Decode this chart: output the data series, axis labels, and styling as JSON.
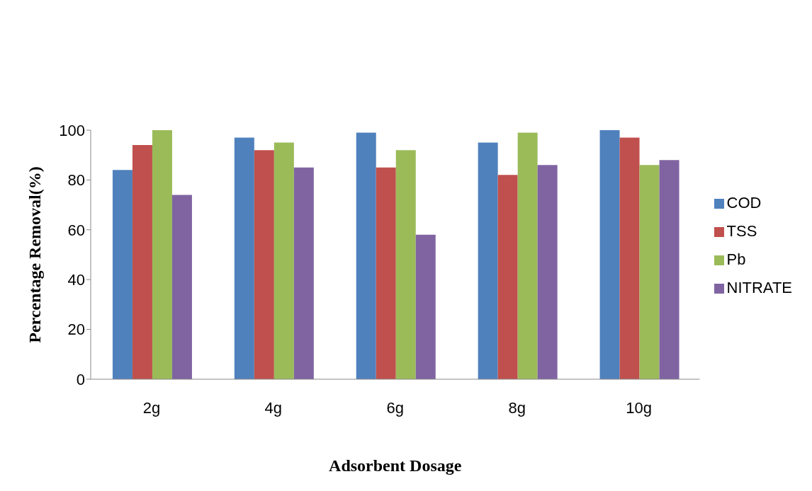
{
  "chart_data": {
    "type": "bar",
    "xlabel": "Adsorbent Dosage",
    "ylabel": "Percentage Removal(%)",
    "categories": [
      "2g",
      "4g",
      "6g",
      "8g",
      "10g"
    ],
    "series": [
      {
        "name": "COD",
        "color": "#4f81bd",
        "values": [
          84,
          97,
          99,
          95,
          100
        ]
      },
      {
        "name": "TSS",
        "color": "#c0504d",
        "values": [
          94,
          92,
          85,
          82,
          97
        ]
      },
      {
        "name": "Pb",
        "color": "#9bbb59",
        "values": [
          100,
          95,
          92,
          99,
          86
        ]
      },
      {
        "name": "NITRATE",
        "color": "#8064a2",
        "values": [
          74,
          85,
          58,
          86,
          88
        ]
      }
    ],
    "ylim": [
      0,
      100
    ],
    "yticks": [
      0,
      20,
      40,
      60,
      80,
      100
    ],
    "grid": false,
    "legend": "right"
  }
}
